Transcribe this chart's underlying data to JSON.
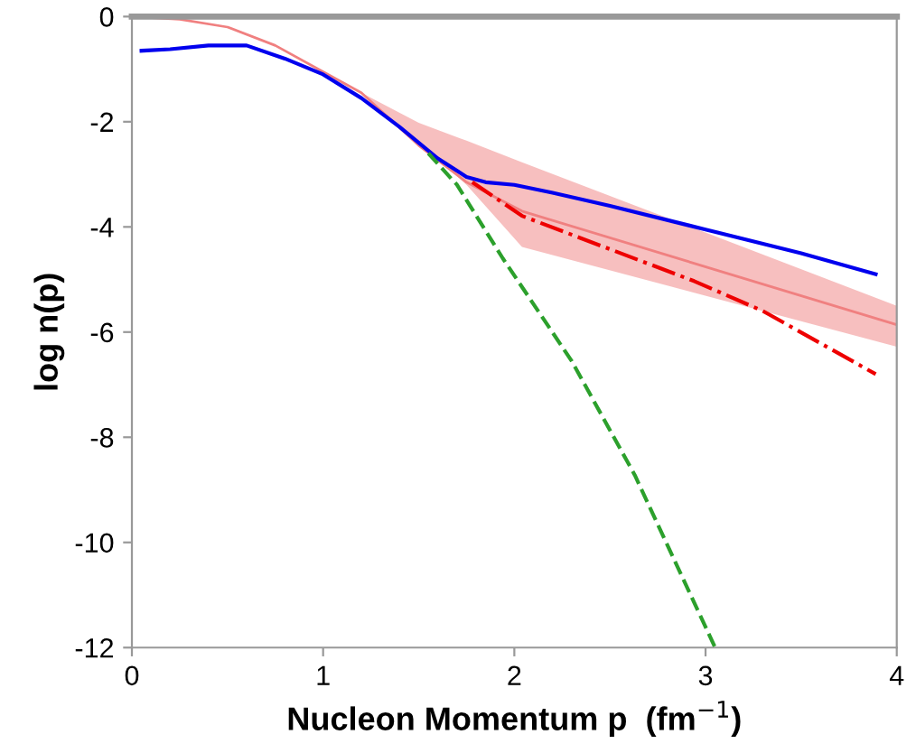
{
  "chart_data": {
    "type": "line",
    "xlabel": "Nucleon Momentum p  (fm$^{−1}$)",
    "ylabel": "log n(p)",
    "xlim": [
      0,
      4
    ],
    "ylim": [
      -12,
      0
    ],
    "xticks": [
      0,
      1,
      2,
      3,
      4
    ],
    "yticks": [
      -12,
      -10,
      -8,
      -6,
      -4,
      -2,
      0
    ],
    "grid": false,
    "legend": false,
    "series": [
      {
        "color": "#f08080",
        "line_style": "solid",
        "x": [
          0,
          0.25,
          0.5,
          0.75,
          1,
          1.2,
          1.5,
          1.75,
          2.04,
          4
        ],
        "values": [
          0,
          -0.05,
          -0.2,
          -0.55,
          -1.05,
          -1.45,
          -2.45,
          -3.15,
          -3.7,
          -5.86
        ],
        "lower": [
          null,
          null,
          null,
          null,
          null,
          -1.45,
          -2.4,
          -3.2,
          -4.38,
          -6.28
        ],
        "upper": [
          null,
          null,
          null,
          null,
          null,
          -1.45,
          -2.02,
          -2.36,
          -2.77,
          -5.5
        ]
      },
      {
        "color": "#0000ee",
        "line_style": "solid",
        "x": [
          0.05,
          0.2,
          0.4,
          0.6,
          0.8,
          1,
          1.2,
          1.4,
          1.6,
          1.75,
          1.85,
          2.0,
          2.2,
          2.5,
          3,
          3.5,
          3.89
        ],
        "values": [
          -0.65,
          -0.62,
          -0.55,
          -0.55,
          -0.8,
          -1.1,
          -1.55,
          -2.1,
          -2.7,
          -3.05,
          -3.15,
          -3.2,
          -3.35,
          -3.6,
          -4.05,
          -4.5,
          -4.9
        ]
      },
      {
        "color": "#2ca02c",
        "line_style": "dashed",
        "x": [
          1.55,
          1.7,
          1.94,
          2.3,
          2.63,
          3.05
        ],
        "values": [
          -2.6,
          -3.2,
          -4.6,
          -6.55,
          -8.72,
          -12
        ]
      },
      {
        "color": "#ee0000",
        "line_style": "dashdot",
        "x": [
          1.78,
          2.04,
          2.94,
          3.3,
          3.89
        ],
        "values": [
          -3.15,
          -3.79,
          -5.03,
          -5.6,
          -6.8
        ]
      }
    ]
  }
}
